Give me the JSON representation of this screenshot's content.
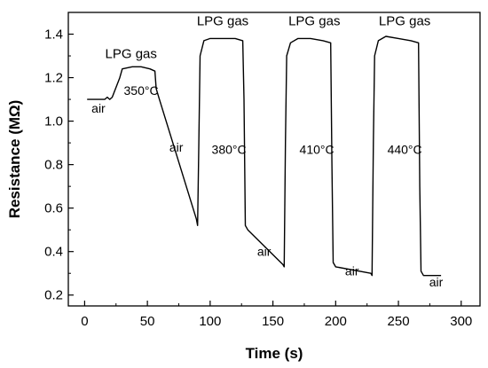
{
  "chart_data": {
    "type": "line",
    "title": "",
    "xlabel": "Time (s)",
    "ylabel": "Resistance (MΩ)",
    "xlim": [
      -13,
      315
    ],
    "ylim": [
      0.15,
      1.5
    ],
    "xticks": [
      0,
      50,
      100,
      150,
      200,
      250,
      300
    ],
    "yticks": [
      0.2,
      0.4,
      0.6,
      0.8,
      1.0,
      1.2,
      1.4
    ],
    "xtick_labels": [
      "0",
      "50",
      "100",
      "150",
      "200",
      "250",
      "300"
    ],
    "ytick_labels": [
      "0.2",
      "0.4",
      "0.6",
      "0.8",
      "1.0",
      "1.2",
      "1.4"
    ],
    "grid": false,
    "series": [
      {
        "x": [
          2,
          10,
          16,
          18,
          20,
          22,
          28,
          30,
          38,
          45,
          52,
          56,
          57,
          59,
          89,
          90,
          91,
          92,
          95,
          100,
          110,
          120,
          126,
          127,
          128,
          130,
          158,
          159,
          160,
          161,
          164,
          170,
          180,
          190,
          196,
          197,
          198,
          200,
          228,
          229,
          230,
          231,
          234,
          240,
          250,
          260,
          266,
          267,
          268,
          270,
          284
        ],
        "y": [
          1.1,
          1.1,
          1.1,
          1.11,
          1.1,
          1.11,
          1.2,
          1.24,
          1.25,
          1.25,
          1.24,
          1.23,
          1.15,
          1.11,
          0.55,
          0.52,
          0.9,
          1.3,
          1.37,
          1.38,
          1.38,
          1.38,
          1.37,
          1.1,
          0.52,
          0.5,
          0.34,
          0.33,
          0.9,
          1.3,
          1.36,
          1.38,
          1.38,
          1.37,
          1.36,
          0.8,
          0.35,
          0.33,
          0.3,
          0.29,
          0.9,
          1.3,
          1.37,
          1.39,
          1.38,
          1.37,
          1.36,
          0.7,
          0.31,
          0.29,
          0.29
        ]
      }
    ],
    "annotations": [
      {
        "text": "air",
        "x": 11,
        "y": 1.04
      },
      {
        "text": "350°C",
        "x": 45,
        "y": 1.12
      },
      {
        "text": "LPG gas",
        "x": 37,
        "y": 1.29
      },
      {
        "text": "air",
        "x": 73,
        "y": 0.86
      },
      {
        "text": "380°C",
        "x": 115,
        "y": 0.85
      },
      {
        "text": "LPG gas",
        "x": 110,
        "y": 1.44
      },
      {
        "text": "air",
        "x": 143,
        "y": 0.38
      },
      {
        "text": "410°C",
        "x": 185,
        "y": 0.85
      },
      {
        "text": "LPG gas",
        "x": 183,
        "y": 1.44
      },
      {
        "text": "air",
        "x": 213,
        "y": 0.29
      },
      {
        "text": "440°C",
        "x": 255,
        "y": 0.85
      },
      {
        "text": "LPG gas",
        "x": 255,
        "y": 1.44
      },
      {
        "text": "air",
        "x": 280,
        "y": 0.24
      }
    ]
  }
}
